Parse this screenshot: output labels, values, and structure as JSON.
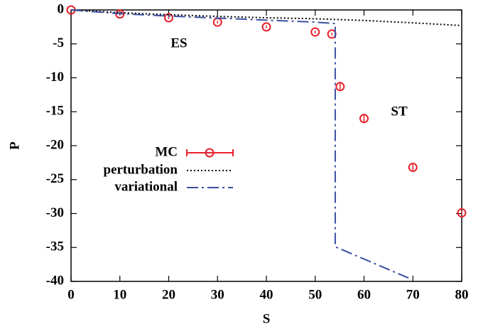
{
  "chart_data": {
    "type": "line",
    "xlabel": "S",
    "ylabel": "P",
    "annotations": [
      "ES",
      "ST"
    ],
    "xlim": [
      0,
      80
    ],
    "xticks": [
      0,
      10,
      20,
      30,
      40,
      50,
      60,
      70,
      80
    ],
    "ylim": [
      -40,
      0
    ],
    "yticks": [
      0,
      -5,
      -10,
      -15,
      -20,
      -25,
      -30,
      -35,
      -40
    ],
    "legend": "center-left",
    "series": [
      {
        "name": "MC",
        "color": "#e8202a",
        "style": "markers",
        "x": [
          0,
          10,
          20,
          30,
          40,
          50,
          53.4,
          55.1,
          60,
          70,
          80
        ],
        "values": [
          0,
          -0.6,
          -1.15,
          -1.8,
          -2.5,
          -3.25,
          -3.55,
          -11.3,
          -16.0,
          -23.2,
          -29.9
        ],
        "errors": [
          0.1,
          0.2,
          0.2,
          0.2,
          0.2,
          0.2,
          0.2,
          0.5,
          0.5,
          0.5,
          0.3
        ]
      },
      {
        "name": "perturbation",
        "color": "#000000",
        "style": "dotted",
        "x": [
          0,
          10,
          20,
          30,
          40,
          50,
          60,
          70,
          80
        ],
        "values": [
          0,
          -0.4,
          -0.7,
          -0.95,
          -1.15,
          -1.3,
          -1.55,
          -1.9,
          -2.3
        ]
      },
      {
        "name": "variational",
        "color": "#3a4fa0",
        "style": "dashdot",
        "x": [
          0,
          10,
          20,
          30,
          40,
          50,
          54.1,
          54.1,
          69.1
        ],
        "values": [
          0,
          -0.55,
          -0.9,
          -1.2,
          -1.5,
          -1.8,
          -2.0,
          -34.9,
          -39.5
        ]
      }
    ]
  }
}
